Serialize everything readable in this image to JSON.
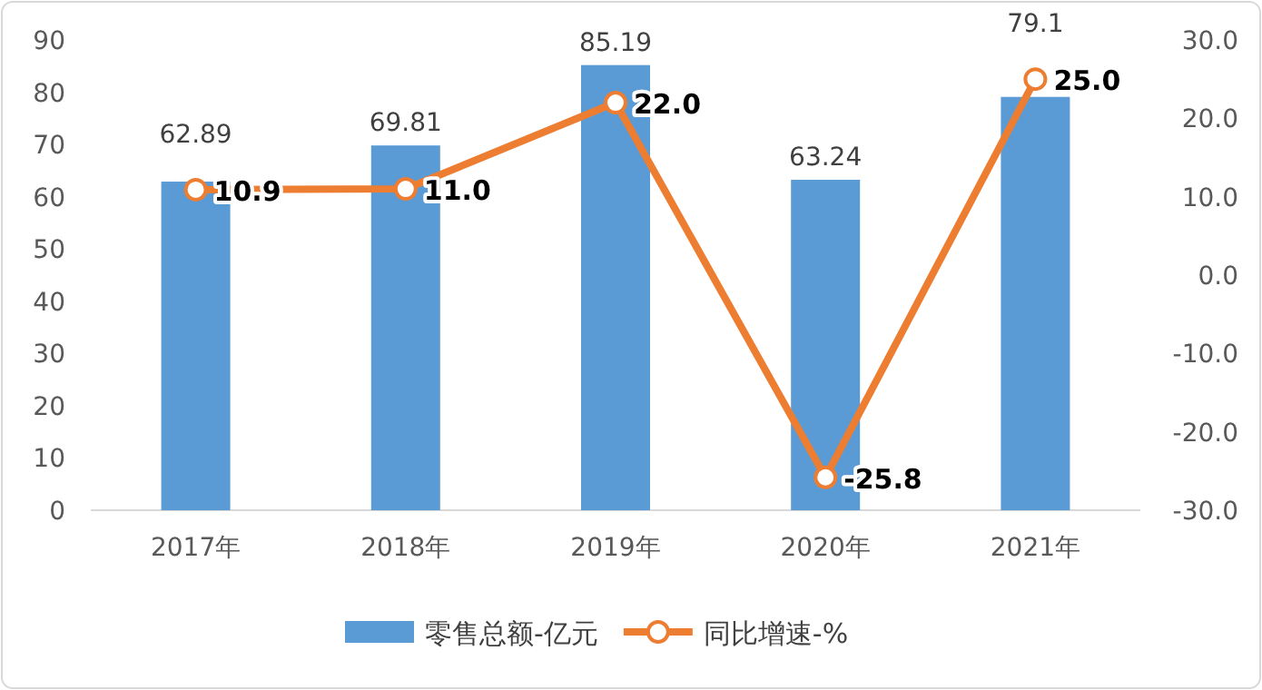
{
  "chart_data": {
    "type": "bar",
    "categories": [
      "2017年",
      "2018年",
      "2019年",
      "2020年",
      "2021年"
    ],
    "series": [
      {
        "name": "零售总额-亿元",
        "color": "#5b9bd5",
        "values": [
          62.89,
          69.81,
          85.19,
          63.24,
          79.1
        ],
        "value_labels": [
          "62.89",
          "69.81",
          "85.19",
          "63.24",
          "79.1"
        ]
      },
      {
        "name": "同比增速-%",
        "type": "line",
        "axis": "y2",
        "color": "#ed7d31",
        "marker": "circle",
        "values": [
          10.9,
          11.0,
          22.0,
          -25.8,
          25.0
        ],
        "value_labels": [
          "10.9",
          "11.0",
          "22.0",
          "-25.8",
          "25.0"
        ]
      }
    ],
    "ylim": [
      0,
      90
    ],
    "yticks": [
      0,
      10,
      20,
      30,
      40,
      50,
      60,
      70,
      80,
      90
    ],
    "y2lim": [
      -30,
      30
    ],
    "y2ticks": [
      {
        "value": -30,
        "label": "-30.0"
      },
      {
        "value": -20,
        "label": "-20.0"
      },
      {
        "value": -10,
        "label": "-10.0"
      },
      {
        "value": 0,
        "label": "0.0"
      },
      {
        "value": 10,
        "label": "10.0"
      },
      {
        "value": 20,
        "label": "20.0"
      },
      {
        "value": 30,
        "label": "30.0"
      }
    ],
    "legend": "bottom",
    "grid": false
  }
}
